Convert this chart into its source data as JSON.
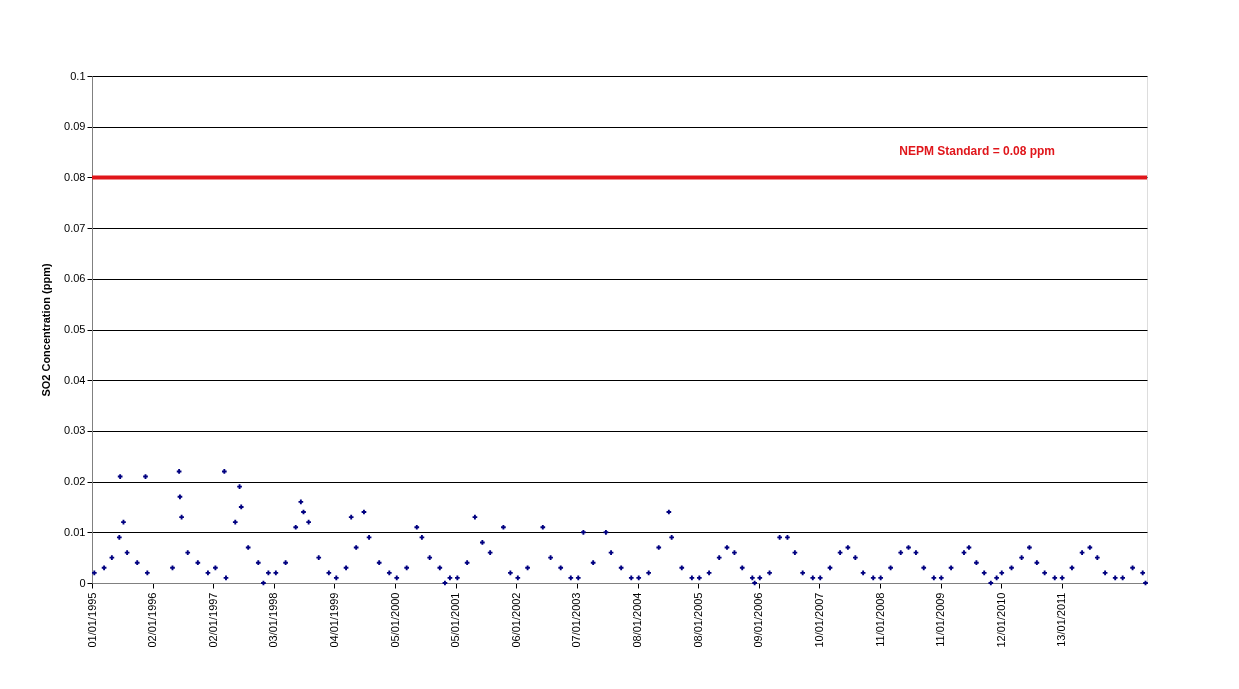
{
  "chart_data": {
    "type": "scatter",
    "ylabel": "SO2 Concentration (ppm)",
    "x": [
      "1995-01-15",
      "1995-03-15",
      "1995-05-01",
      "1995-06-15",
      "1995-06-20",
      "1995-07-10",
      "1995-08-01",
      "1995-10-01",
      "1995-11-20",
      "1995-12-01",
      "1996-05-01",
      "1996-06-10",
      "1996-06-15",
      "1996-06-25",
      "1996-08-01",
      "1996-10-01",
      "1996-12-01",
      "1997-01-15",
      "1997-03-10",
      "1997-03-20",
      "1997-05-15",
      "1997-06-10",
      "1997-06-20",
      "1997-08-01",
      "1997-10-01",
      "1997-11-01",
      "1997-12-01",
      "1998-01-15",
      "1998-03-15",
      "1998-05-15",
      "1998-06-15",
      "1998-07-01",
      "1998-08-01",
      "1998-10-01",
      "1998-12-01",
      "1999-01-15",
      "1999-03-15",
      "1999-04-15",
      "1999-05-15",
      "1999-07-01",
      "1999-08-01",
      "1999-10-01",
      "1999-12-01",
      "2000-01-15",
      "2000-03-15",
      "2000-05-15",
      "2000-06-15",
      "2000-08-01",
      "2000-10-01",
      "2000-11-01",
      "2000-12-01",
      "2001-01-15",
      "2001-03-15",
      "2001-05-01",
      "2001-06-15",
      "2001-08-01",
      "2001-10-20",
      "2001-12-01",
      "2002-01-15",
      "2002-03-15",
      "2002-06-15",
      "2002-08-01",
      "2002-10-01",
      "2002-12-01",
      "2003-01-15",
      "2003-02-15",
      "2003-04-15",
      "2003-07-01",
      "2003-08-01",
      "2003-10-01",
      "2003-12-01",
      "2004-01-15",
      "2004-03-15",
      "2004-05-15",
      "2004-07-15",
      "2004-08-01",
      "2004-10-01",
      "2004-12-01",
      "2005-01-15",
      "2005-03-15",
      "2005-05-15",
      "2005-07-01",
      "2005-08-15",
      "2005-10-01",
      "2005-12-01",
      "2005-12-15",
      "2006-01-15",
      "2006-03-15",
      "2006-05-15",
      "2006-07-01",
      "2006-08-15",
      "2006-10-01",
      "2006-12-01",
      "2007-01-15",
      "2007-03-15",
      "2007-05-15",
      "2007-07-01",
      "2007-08-15",
      "2007-10-01",
      "2007-12-01",
      "2008-01-15",
      "2008-03-15",
      "2008-05-15",
      "2008-07-01",
      "2008-08-15",
      "2008-10-01",
      "2008-12-01",
      "2009-01-15",
      "2009-03-15",
      "2009-06-01",
      "2009-07-01",
      "2009-08-15",
      "2009-10-01",
      "2009-11-10",
      "2009-12-15",
      "2010-01-15",
      "2010-03-15",
      "2010-05-15",
      "2010-07-01",
      "2010-08-15",
      "2010-10-01",
      "2010-12-01",
      "2011-01-15",
      "2011-03-15",
      "2011-05-15",
      "2011-07-01",
      "2011-08-15",
      "2011-10-01",
      "2011-12-01",
      "2012-01-15",
      "2012-03-15",
      "2012-05-15",
      "2012-06-01"
    ],
    "series": [
      {
        "color": "#000080",
        "values": [
          0.002,
          0.003,
          0.005,
          0.009,
          0.021,
          0.012,
          0.006,
          0.004,
          0.021,
          0.002,
          0.003,
          0.022,
          0.017,
          0.013,
          0.006,
          0.004,
          0.002,
          0.003,
          0.022,
          0.001,
          0.012,
          0.019,
          0.015,
          0.007,
          0.004,
          0.0,
          0.002,
          0.002,
          0.004,
          0.011,
          0.016,
          0.014,
          0.012,
          0.005,
          0.002,
          0.001,
          0.003,
          0.013,
          0.007,
          0.014,
          0.009,
          0.004,
          0.002,
          0.001,
          0.003,
          0.011,
          0.009,
          0.005,
          0.003,
          0.0,
          0.001,
          0.001,
          0.004,
          0.013,
          0.008,
          0.006,
          0.011,
          0.002,
          0.001,
          0.003,
          0.011,
          0.005,
          0.003,
          0.001,
          0.001,
          0.01,
          0.004,
          0.01,
          0.006,
          0.003,
          0.001,
          0.001,
          0.002,
          0.007,
          0.014,
          0.009,
          0.003,
          0.001,
          0.001,
          0.002,
          0.005,
          0.007,
          0.006,
          0.003,
          0.001,
          0.0,
          0.001,
          0.002,
          0.009,
          0.009,
          0.006,
          0.002,
          0.001,
          0.001,
          0.003,
          0.006,
          0.007,
          0.005,
          0.002,
          0.001,
          0.001,
          0.003,
          0.006,
          0.007,
          0.006,
          0.003,
          0.001,
          0.001,
          0.003,
          0.006,
          0.007,
          0.004,
          0.002,
          0.0,
          0.001,
          0.002,
          0.003,
          0.005,
          0.007,
          0.004,
          0.002,
          0.001,
          0.001,
          0.003,
          0.006,
          0.007,
          0.005,
          0.002,
          0.001,
          0.001,
          0.003,
          0.002,
          0.0
        ]
      }
    ],
    "marker": "cross",
    "xlim": [
      "1995-01-01",
      "2012-06-10"
    ],
    "xticks": [
      {
        "value": "1995-01-01",
        "label": "01/01/1995"
      },
      {
        "value": "1996-01-02",
        "label": "02/01/1996"
      },
      {
        "value": "1997-01-02",
        "label": "02/01/1997"
      },
      {
        "value": "1998-01-03",
        "label": "03/01/1998"
      },
      {
        "value": "1999-01-04",
        "label": "04/01/1999"
      },
      {
        "value": "2000-01-05",
        "label": "05/01/2000"
      },
      {
        "value": "2001-01-05",
        "label": "05/01/2001"
      },
      {
        "value": "2002-01-06",
        "label": "06/01/2002"
      },
      {
        "value": "2003-01-07",
        "label": "07/01/2003"
      },
      {
        "value": "2004-01-08",
        "label": "08/01/2004"
      },
      {
        "value": "2005-01-08",
        "label": "08/01/2005"
      },
      {
        "value": "2006-01-09",
        "label": "09/01/2006"
      },
      {
        "value": "2007-01-10",
        "label": "10/01/2007"
      },
      {
        "value": "2008-01-11",
        "label": "11/01/2008"
      },
      {
        "value": "2009-01-11",
        "label": "11/01/2009"
      },
      {
        "value": "2010-01-12",
        "label": "12/01/2010"
      },
      {
        "value": "2011-01-13",
        "label": "13/01/2011"
      }
    ],
    "ylim": [
      0,
      0.1
    ],
    "yticks": [
      0,
      0.01,
      0.02,
      0.03,
      0.04,
      0.05,
      0.06,
      0.07,
      0.08,
      0.09,
      0.1
    ],
    "grid": "y",
    "ref_lines": [
      {
        "axis": "y",
        "value": 0.08,
        "label": "NEPM Standard = 0.08 ppm",
        "color": "#e0161b",
        "line_style": "solid"
      }
    ]
  }
}
